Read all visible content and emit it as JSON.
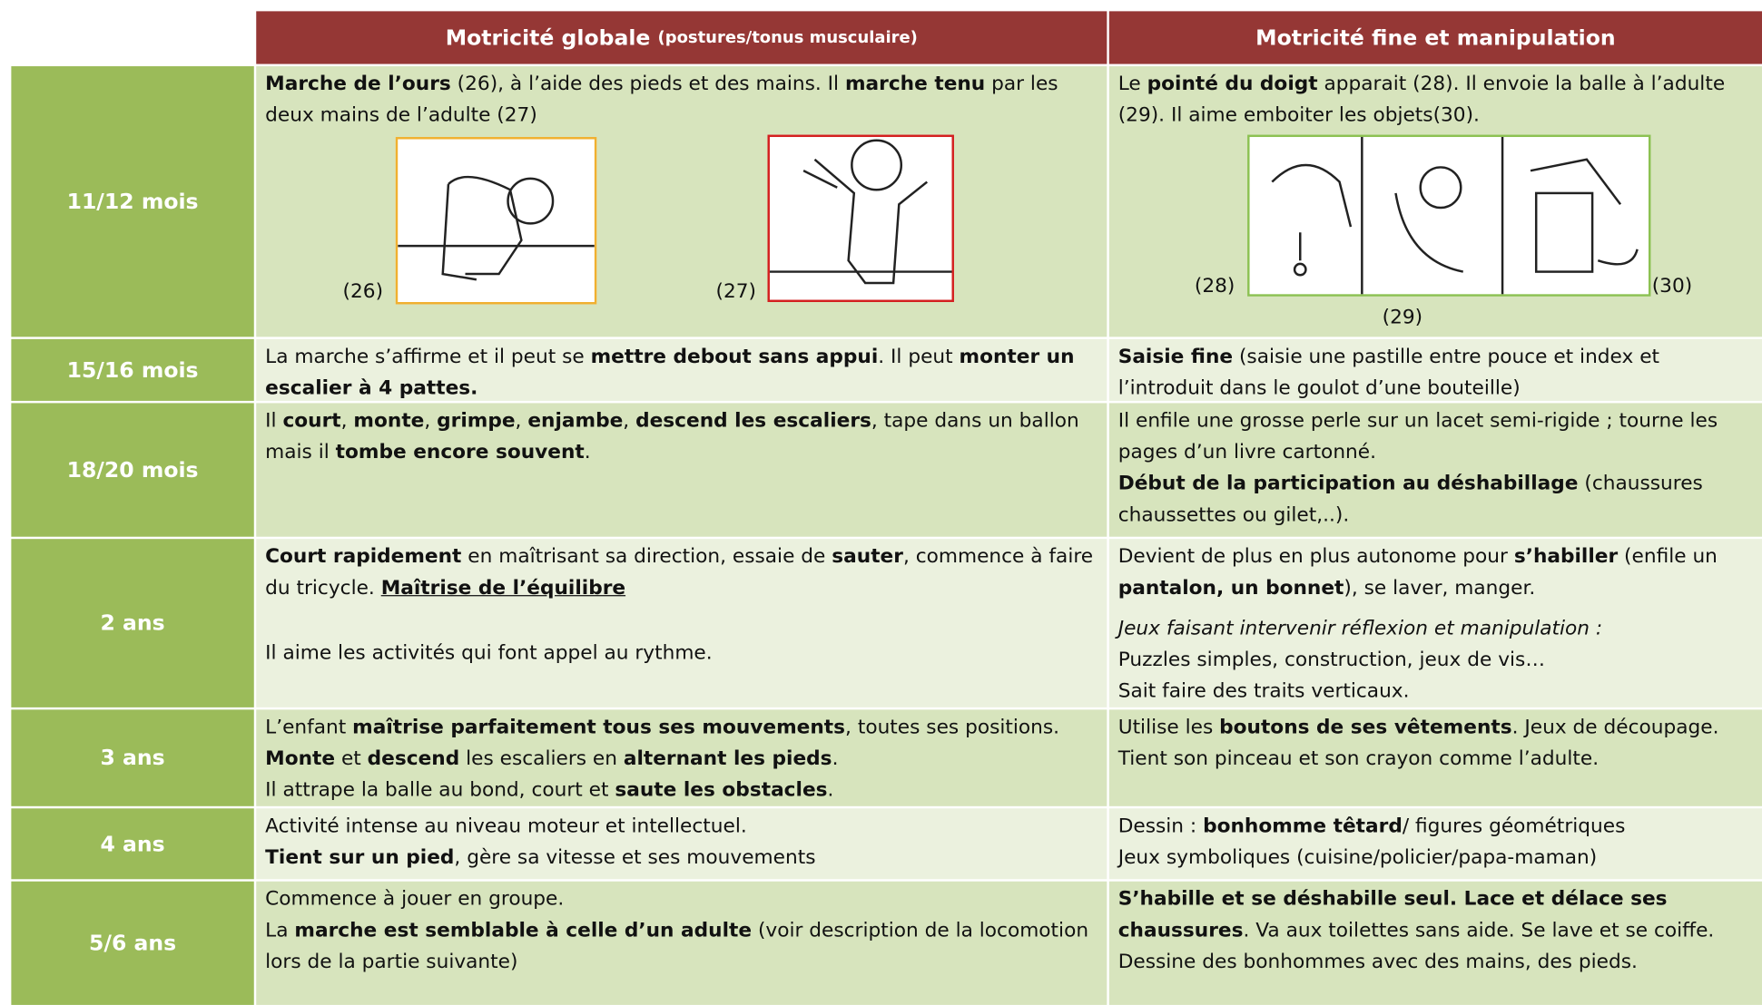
{
  "header": {
    "col1": {
      "main": "Motricité globale",
      "sub": "(postures/tonus musculaire)"
    },
    "col2": "Motricité fine et manipulation"
  },
  "rows": [
    {
      "age": "11/12 mois",
      "col1": [
        [
          {
            "text": "Marche de l’ours",
            "style": "bold"
          },
          {
            "text": " (26), à l’aide des pieds et des mains. Il "
          },
          {
            "text": "marche tenu",
            "style": "bold"
          },
          {
            "text": " par les deux mains de l’adulte (27)"
          }
        ]
      ],
      "col2": [
        [
          {
            "text": "Le "
          },
          {
            "text": "pointé du doigt",
            "style": "bold"
          },
          {
            "text": " apparait (28). Il envoie la balle à l’adulte (29). Il aime emboiter les objets(30)."
          }
        ]
      ],
      "figures": [
        "(26)",
        "(27)",
        "(28)",
        "(29)",
        "(30)"
      ]
    },
    {
      "age": "15/16 mois",
      "col1": [
        [
          {
            "text": "La marche s’affirme et il peut se "
          },
          {
            "text": "mettre debout sans appui",
            "style": "bold"
          },
          {
            "text": ". Il peut "
          },
          {
            "text": "monter un escalier à 4 pattes.",
            "style": "bold"
          }
        ]
      ],
      "col2": [
        [
          {
            "text": "Saisie fine",
            "style": "bold"
          },
          {
            "text": " (saisie une pastille entre pouce et index et l’introduit dans le goulot d’une bouteille)"
          }
        ]
      ]
    },
    {
      "age": "18/20 mois",
      "col1": [
        [
          {
            "text": "Il "
          },
          {
            "text": "court",
            "style": "bold"
          },
          {
            "text": ", "
          },
          {
            "text": "monte",
            "style": "bold"
          },
          {
            "text": ", "
          },
          {
            "text": "grimpe",
            "style": "bold"
          },
          {
            "text": ", "
          },
          {
            "text": "enjambe",
            "style": "bold"
          },
          {
            "text": ", "
          },
          {
            "text": "descend les escaliers",
            "style": "bold"
          },
          {
            "text": ", tape dans un ballon mais il "
          },
          {
            "text": "tombe encore souvent",
            "style": "bold"
          },
          {
            "text": "."
          }
        ]
      ],
      "col2": [
        [
          {
            "text": "Il enfile une grosse perle sur un lacet semi-rigide ; tourne les pages d’un livre cartonné."
          }
        ],
        [
          {
            "text": "Début de la participation au déshabillage",
            "style": "bold"
          },
          {
            "text": " (chaussures chaussettes ou gilet,..)."
          }
        ]
      ]
    },
    {
      "age": "2 ans",
      "col1": [
        [
          {
            "text": "Court rapidement",
            "style": "bold"
          },
          {
            "text": " en maîtrisant sa direction, essaie de "
          },
          {
            "text": "sauter",
            "style": "bold"
          },
          {
            "text": ", commence à faire du tricycle. "
          },
          {
            "text": "Maîtrise de l’équilibre",
            "style": "bold-underline"
          }
        ],
        [
          {
            "text": "Il aime les activités qui font appel au rythme."
          }
        ]
      ],
      "col2": [
        [
          {
            "text": "Devient de plus en plus autonome pour "
          },
          {
            "text": "s’habiller",
            "style": "bold"
          },
          {
            "text": " (enfile un "
          },
          {
            "text": "pantalon, un bonnet",
            "style": "bold"
          },
          {
            "text": "), se laver, manger."
          }
        ],
        [
          {
            "text": "Jeux faisant intervenir réflexion et manipulation :",
            "style": "italic"
          }
        ],
        [
          {
            "text": "Puzzles simples, construction, jeux de vis…"
          }
        ],
        [
          {
            "text": "Sait faire des traits verticaux."
          }
        ]
      ]
    },
    {
      "age": "3 ans",
      "col1": [
        [
          {
            "text": "L’enfant "
          },
          {
            "text": "maîtrise parfaitement tous ses mouvements",
            "style": "bold"
          },
          {
            "text": ", toutes ses positions."
          }
        ],
        [
          {
            "text": "Monte",
            "style": "bold"
          },
          {
            "text": " et "
          },
          {
            "text": "descend",
            "style": "bold"
          },
          {
            "text": " les escaliers en "
          },
          {
            "text": "alternant les pieds",
            "style": "bold"
          },
          {
            "text": "."
          }
        ],
        [
          {
            "text": "Il attrape la balle au bond, court et "
          },
          {
            "text": "saute les obstacles",
            "style": "bold"
          },
          {
            "text": "."
          }
        ]
      ],
      "col2": [
        [
          {
            "text": "Utilise les "
          },
          {
            "text": "boutons de ses vêtements",
            "style": "bold"
          },
          {
            "text": ". Jeux de découpage."
          }
        ],
        [
          {
            "text": "Tient son pinceau et son crayon comme l’adulte."
          }
        ]
      ]
    },
    {
      "age": "4 ans",
      "col1": [
        [
          {
            "text": "Activité intense au niveau moteur et intellectuel."
          }
        ],
        [
          {
            "text": "Tient sur un pied",
            "style": "bold"
          },
          {
            "text": ", gère sa vitesse et ses mouvements"
          }
        ]
      ],
      "col2": [
        [
          {
            "text": "Dessin : "
          },
          {
            "text": "bonhomme têtard",
            "style": "bold"
          },
          {
            "text": "/ figures géométriques"
          }
        ],
        [
          {
            "text": "Jeux symboliques (cuisine/policier/papa-maman)"
          }
        ]
      ]
    },
    {
      "age": "5/6 ans",
      "col1": [
        [
          {
            "text": "Commence à jouer en groupe."
          }
        ],
        [
          {
            "text": "La "
          },
          {
            "text": "marche est semblable à celle d’un adulte",
            "style": "bold"
          },
          {
            "text": " (voir description de la locomotion lors de la partie suivante)"
          }
        ]
      ],
      "col2": [
        [
          {
            "text": "S’habille et se déshabille seul. Lace et délace ses chaussures",
            "style": "bold"
          },
          {
            "text": ". Va aux toilettes sans aide. Se lave et se coiffe."
          }
        ],
        [
          {
            "text": "Dessine des bonhommes avec des mains, des pieds."
          }
        ]
      ]
    }
  ]
}
